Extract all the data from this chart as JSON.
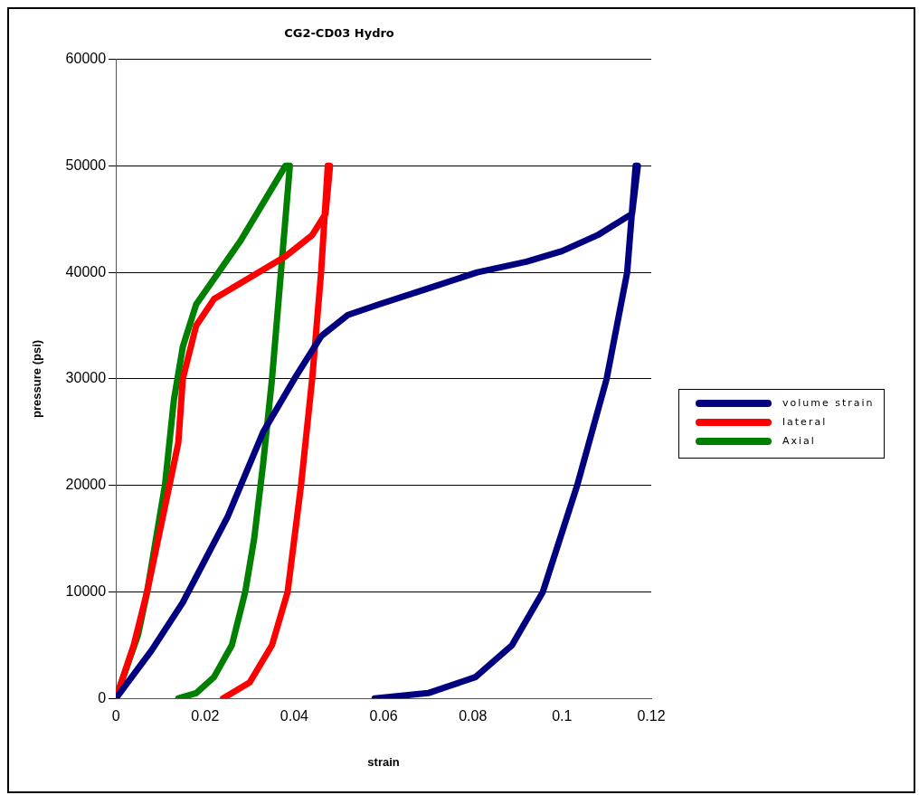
{
  "chart_data": {
    "type": "line",
    "title": "CG2-CD03 Hydro",
    "xlabel": "strain",
    "ylabel": "pressure (psi)",
    "xlim": [
      0,
      0.12
    ],
    "xticks": [
      0,
      0.02,
      0.04,
      0.06,
      0.08,
      0.1,
      0.12
    ],
    "ylim": [
      0,
      60000
    ],
    "yticks": [
      0,
      10000,
      20000,
      30000,
      40000,
      50000,
      60000
    ],
    "grid": "y",
    "legend": "right",
    "marker": "none",
    "line_style": "solid",
    "series": [
      {
        "name": "volume strain",
        "color": "#000080",
        "x": [
          0,
          0.008,
          0.015,
          0.025,
          0.033,
          0.04,
          0.046,
          0.052,
          0.059,
          0.07,
          0.081,
          0.092,
          0.1,
          0.108,
          0.1157,
          0.117,
          0.1165,
          0.1146,
          0.11,
          0.1034,
          0.0957,
          0.0888,
          0.0806,
          0.07,
          0.058
        ],
        "values": [
          0,
          4500,
          9000,
          17000,
          25000,
          30000,
          34000,
          36000,
          37000,
          38500,
          40000,
          41000,
          42000,
          43500,
          45500,
          50000,
          50000,
          40000,
          30000,
          20000,
          10000,
          5000,
          2000,
          500,
          0
        ]
      },
      {
        "name": "lateral",
        "color": "#ff0000",
        "x": [
          0,
          0.004,
          0.007,
          0.012,
          0.014,
          0.015,
          0.018,
          0.022,
          0.03,
          0.038,
          0.044,
          0.047,
          0.048,
          0.0475,
          0.046,
          0.044,
          0.0415,
          0.0385,
          0.035,
          0.03,
          0.024
        ],
        "values": [
          0,
          5000,
          10000,
          20000,
          24000,
          30000,
          35000,
          37500,
          39500,
          41500,
          43500,
          45500,
          50000,
          50000,
          40000,
          30000,
          20000,
          10000,
          5000,
          1500,
          0
        ]
      },
      {
        "name": "Axial",
        "color": "#008000",
        "x": [
          0,
          0.005,
          0.007,
          0.011,
          0.013,
          0.015,
          0.018,
          0.023,
          0.028,
          0.033,
          0.038,
          0.039,
          0.037,
          0.035,
          0.033,
          0.031,
          0.029,
          0.026,
          0.022,
          0.018,
          0.014
        ],
        "values": [
          0,
          6000,
          10000,
          20000,
          28000,
          33000,
          37000,
          40000,
          43000,
          46500,
          50000,
          50000,
          40000,
          30000,
          22000,
          15000,
          10000,
          5000,
          2000,
          500,
          0
        ]
      }
    ]
  }
}
